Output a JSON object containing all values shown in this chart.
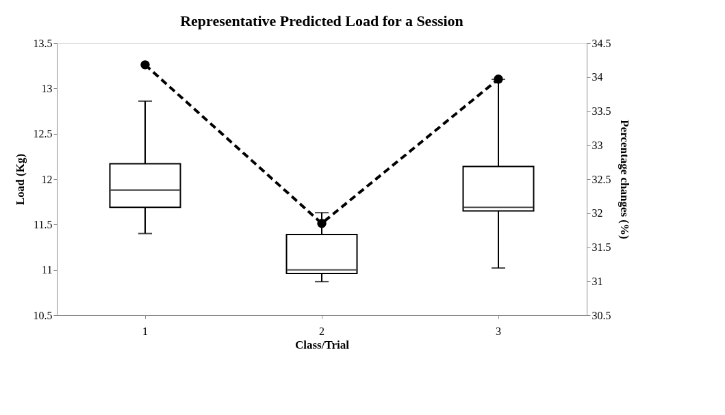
{
  "chart_data": {
    "type": "box",
    "title": "Representative Predicted Load for a Session",
    "xlabel": "Class/Trial",
    "ylabel": "Load (Kg)",
    "y2label": "Percentage changes (%)",
    "categories": [
      "1",
      "2",
      "3"
    ],
    "boxes": [
      {
        "low": 11.4,
        "q1": 11.69,
        "median": 11.88,
        "q3": 12.17,
        "high": 12.86
      },
      {
        "low": 10.87,
        "q1": 10.96,
        "median": 11.0,
        "q3": 11.39,
        "high": 11.63
      },
      {
        "low": 11.02,
        "q1": 11.65,
        "median": 11.69,
        "q3": 12.14,
        "high": 13.1
      }
    ],
    "series": [
      {
        "type": "line",
        "axis": "y2",
        "color": "#000000",
        "marker": "circle",
        "line_style": "dashed",
        "values": [
          34.18,
          31.85,
          33.97
        ]
      }
    ],
    "ylim": [
      10.5,
      13.5
    ],
    "yticks": [
      10.5,
      11,
      11.5,
      12,
      12.5,
      13,
      13.5
    ],
    "y2lim": [
      30.5,
      34.5
    ],
    "y2ticks": [
      30.5,
      31,
      31.5,
      32,
      32.5,
      33,
      33.5,
      34,
      34.5
    ],
    "grid": false
  }
}
